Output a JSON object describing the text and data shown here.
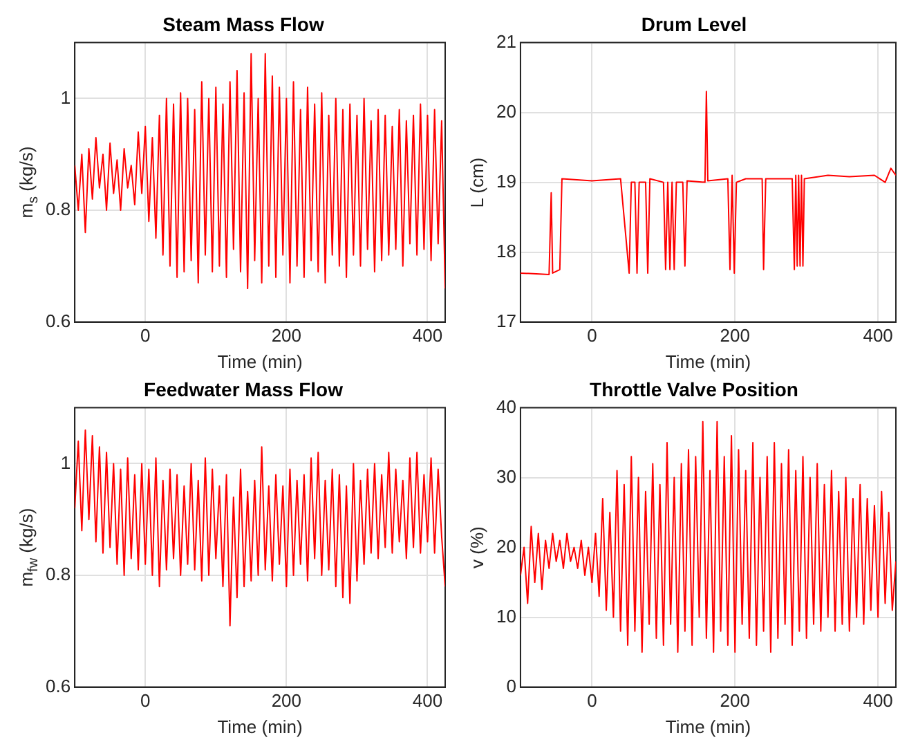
{
  "chart_data": [
    {
      "type": "line",
      "title": "Steam Mass Flow",
      "xlabel": "Time (min)",
      "ylabel": "m$_{s}$ (kg/s)",
      "color": "#ff0000",
      "grid": true,
      "xlim": [
        -100,
        425
      ],
      "xticks": [
        0,
        200,
        400
      ],
      "ylim": [
        0.6,
        1.1
      ],
      "yticks": [
        0.6,
        0.8,
        1
      ],
      "x": [
        -100,
        -95,
        -90,
        -85,
        -80,
        -75,
        -70,
        -65,
        -60,
        -55,
        -50,
        -45,
        -40,
        -35,
        -30,
        -25,
        -20,
        -15,
        -10,
        -5,
        0,
        5,
        10,
        15,
        20,
        25,
        30,
        35,
        40,
        45,
        50,
        55,
        60,
        65,
        70,
        75,
        80,
        85,
        90,
        95,
        100,
        105,
        110,
        115,
        120,
        125,
        130,
        135,
        140,
        145,
        150,
        155,
        160,
        165,
        170,
        175,
        180,
        185,
        190,
        195,
        200,
        205,
        210,
        215,
        220,
        225,
        230,
        235,
        240,
        245,
        250,
        255,
        260,
        265,
        270,
        275,
        280,
        285,
        290,
        295,
        300,
        305,
        310,
        315,
        320,
        325,
        330,
        335,
        340,
        345,
        350,
        355,
        360,
        365,
        370,
        375,
        380,
        385,
        390,
        395,
        400,
        405,
        410,
        415,
        420,
        425
      ],
      "values": [
        0.88,
        0.8,
        0.9,
        0.76,
        0.91,
        0.82,
        0.93,
        0.84,
        0.9,
        0.8,
        0.92,
        0.83,
        0.89,
        0.8,
        0.91,
        0.84,
        0.88,
        0.81,
        0.94,
        0.83,
        0.95,
        0.78,
        0.93,
        0.75,
        0.97,
        0.72,
        1.0,
        0.7,
        0.99,
        0.68,
        1.01,
        0.69,
        1.0,
        0.71,
        0.98,
        0.67,
        1.03,
        0.72,
        1.0,
        0.69,
        1.02,
        0.7,
        0.99,
        0.68,
        1.03,
        0.73,
        1.05,
        0.69,
        1.01,
        0.66,
        1.08,
        0.71,
        1.0,
        0.67,
        1.08,
        0.7,
        1.04,
        0.68,
        1.02,
        0.72,
        1.0,
        0.67,
        1.03,
        0.7,
        0.98,
        0.68,
        1.02,
        0.71,
        0.99,
        0.69,
        1.01,
        0.67,
        0.97,
        0.72,
        1.0,
        0.7,
        0.98,
        0.68,
        0.99,
        0.72,
        0.97,
        0.7,
        1.0,
        0.73,
        0.96,
        0.69,
        0.98,
        0.71,
        0.97,
        0.72,
        0.95,
        0.73,
        0.98,
        0.7,
        0.96,
        0.74,
        0.97,
        0.72,
        0.99,
        0.73,
        0.97,
        0.71,
        0.98,
        0.74,
        0.96,
        0.66
      ]
    },
    {
      "type": "line",
      "title": "Drum Level",
      "xlabel": "Time (min)",
      "ylabel": "L (cm)",
      "color": "#ff0000",
      "grid": true,
      "xlim": [
        -100,
        425
      ],
      "xticks": [
        0,
        200,
        400
      ],
      "ylim": [
        17,
        21
      ],
      "yticks": [
        17,
        18,
        19,
        20,
        21
      ],
      "x": [
        -100,
        -60,
        -57,
        -55,
        -45,
        -42,
        0,
        40,
        52,
        55,
        60,
        63,
        66,
        75,
        78,
        81,
        100,
        103,
        106,
        109,
        112,
        115,
        118,
        127,
        130,
        133,
        158,
        160,
        162,
        190,
        193,
        196,
        199,
        202,
        215,
        238,
        240,
        243,
        280,
        283,
        285,
        287,
        289,
        291,
        293,
        295,
        297,
        330,
        360,
        395,
        410,
        418,
        425
      ],
      "values": [
        17.7,
        17.68,
        18.85,
        17.7,
        17.75,
        19.05,
        19.02,
        19.05,
        17.7,
        19.0,
        19.0,
        17.7,
        19.0,
        19.0,
        17.7,
        19.05,
        19.0,
        17.75,
        19.0,
        17.75,
        19.0,
        17.75,
        19.0,
        19.0,
        17.8,
        19.02,
        19.0,
        20.3,
        19.02,
        19.05,
        17.75,
        19.1,
        17.7,
        19.0,
        19.05,
        19.05,
        17.75,
        19.05,
        19.05,
        17.75,
        19.1,
        17.8,
        19.1,
        17.8,
        19.1,
        17.8,
        19.05,
        19.1,
        19.08,
        19.1,
        19.0,
        19.2,
        19.1
      ]
    },
    {
      "type": "line",
      "title": "Feedwater Mass Flow",
      "xlabel": "Time (min)",
      "ylabel": "m$_{fw}$ (kg/s)",
      "color": "#ff0000",
      "grid": true,
      "xlim": [
        -100,
        425
      ],
      "xticks": [
        0,
        200,
        400
      ],
      "ylim": [
        0.6,
        1.1
      ],
      "yticks": [
        0.6,
        0.8,
        1
      ],
      "x": [
        -100,
        -95,
        -90,
        -85,
        -80,
        -75,
        -70,
        -65,
        -60,
        -55,
        -50,
        -45,
        -40,
        -35,
        -30,
        -25,
        -20,
        -15,
        -10,
        -5,
        0,
        5,
        10,
        15,
        20,
        25,
        30,
        35,
        40,
        45,
        50,
        55,
        60,
        65,
        70,
        75,
        80,
        85,
        90,
        95,
        100,
        105,
        110,
        115,
        120,
        125,
        130,
        135,
        140,
        145,
        150,
        155,
        160,
        165,
        170,
        175,
        180,
        185,
        190,
        195,
        200,
        205,
        210,
        215,
        220,
        225,
        230,
        235,
        240,
        245,
        250,
        255,
        260,
        265,
        270,
        275,
        280,
        285,
        290,
        295,
        300,
        305,
        310,
        315,
        320,
        325,
        330,
        335,
        340,
        345,
        350,
        355,
        360,
        365,
        370,
        375,
        380,
        385,
        390,
        395,
        400,
        405,
        410,
        415,
        420,
        425
      ],
      "values": [
        0.92,
        1.04,
        0.88,
        1.06,
        0.9,
        1.05,
        0.86,
        1.03,
        0.84,
        1.02,
        0.85,
        1.0,
        0.82,
        0.99,
        0.8,
        1.01,
        0.83,
        0.98,
        0.81,
        1.0,
        0.82,
        0.99,
        0.8,
        1.01,
        0.78,
        0.97,
        0.81,
        0.99,
        0.83,
        0.98,
        0.8,
        0.96,
        0.82,
        1.0,
        0.81,
        0.97,
        0.79,
        1.01,
        0.8,
        0.99,
        0.83,
        0.96,
        0.78,
        0.98,
        0.71,
        0.94,
        0.76,
        0.99,
        0.78,
        0.95,
        0.79,
        0.97,
        0.8,
        1.03,
        0.81,
        0.96,
        0.79,
        0.98,
        0.82,
        0.96,
        0.78,
        0.99,
        0.8,
        0.97,
        0.82,
        0.98,
        0.79,
        1.01,
        0.83,
        1.02,
        0.8,
        0.97,
        0.81,
        0.99,
        0.78,
        0.98,
        0.76,
        0.96,
        0.75,
        1.0,
        0.79,
        0.97,
        0.82,
        0.99,
        0.84,
        1.0,
        0.83,
        0.98,
        0.85,
        1.02,
        0.84,
        0.99,
        0.86,
        0.97,
        0.83,
        1.01,
        0.85,
        1.02,
        0.84,
        0.98,
        0.86,
        1.01,
        0.84,
        0.99,
        0.87,
        0.78
      ]
    },
    {
      "type": "line",
      "title": "Throttle Valve Position",
      "xlabel": "Time (min)",
      "ylabel": "v (%)",
      "color": "#ff0000",
      "grid": true,
      "xlim": [
        -100,
        425
      ],
      "xticks": [
        0,
        200,
        400
      ],
      "ylim": [
        0,
        40
      ],
      "yticks": [
        0,
        10,
        20,
        30,
        40
      ],
      "x": [
        -100,
        -95,
        -90,
        -85,
        -80,
        -75,
        -70,
        -65,
        -60,
        -55,
        -50,
        -45,
        -40,
        -35,
        -30,
        -25,
        -20,
        -15,
        -10,
        -5,
        0,
        5,
        10,
        15,
        20,
        25,
        30,
        35,
        40,
        45,
        50,
        55,
        60,
        65,
        70,
        75,
        80,
        85,
        90,
        95,
        100,
        105,
        110,
        115,
        120,
        125,
        130,
        135,
        140,
        145,
        150,
        155,
        160,
        165,
        170,
        175,
        180,
        185,
        190,
        195,
        200,
        205,
        210,
        215,
        220,
        225,
        230,
        235,
        240,
        245,
        250,
        255,
        260,
        265,
        270,
        275,
        280,
        285,
        290,
        295,
        300,
        305,
        310,
        315,
        320,
        325,
        330,
        335,
        340,
        345,
        350,
        355,
        360,
        365,
        370,
        375,
        380,
        385,
        390,
        395,
        400,
        405,
        410,
        415,
        420,
        425
      ],
      "values": [
        16,
        20,
        12,
        23,
        15,
        22,
        14,
        21,
        17,
        22,
        18,
        21,
        17,
        22,
        18,
        20,
        17,
        21,
        16,
        20,
        15,
        22,
        13,
        27,
        11,
        25,
        10,
        31,
        8,
        29,
        6,
        33,
        8,
        30,
        5,
        28,
        9,
        32,
        7,
        29,
        6,
        35,
        9,
        30,
        5,
        32,
        8,
        34,
        6,
        33,
        10,
        38,
        7,
        31,
        5,
        38,
        8,
        33,
        6,
        36,
        5,
        34,
        9,
        31,
        7,
        35,
        6,
        30,
        8,
        33,
        5,
        35,
        7,
        32,
        9,
        34,
        6,
        31,
        8,
        33,
        7,
        30,
        9,
        32,
        8,
        29,
        10,
        31,
        8,
        28,
        9,
        30,
        8,
        27,
        10,
        29,
        9,
        27,
        11,
        26,
        10,
        28,
        12,
        25,
        11,
        18
      ]
    }
  ]
}
